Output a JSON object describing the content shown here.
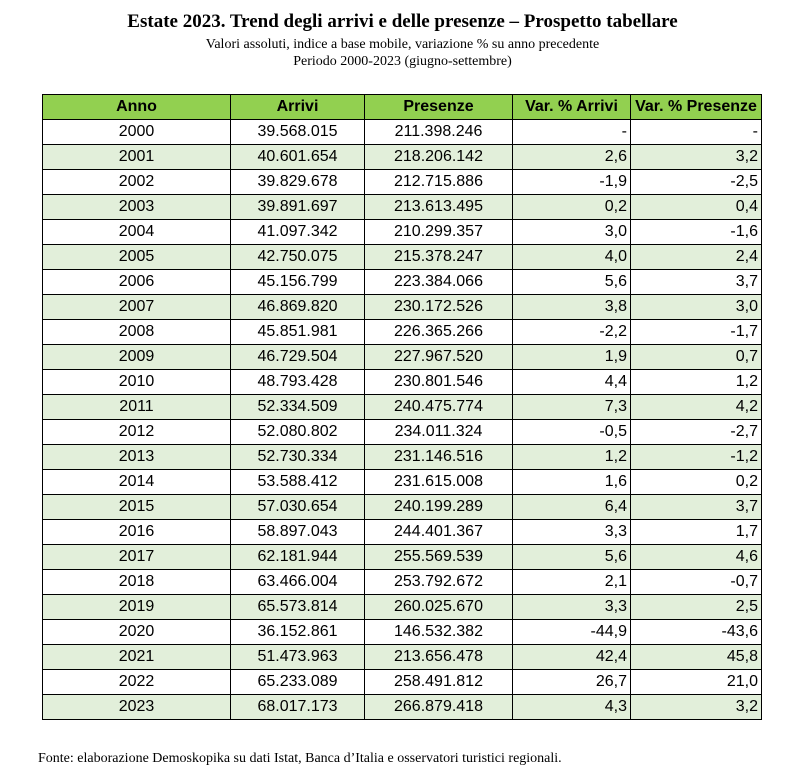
{
  "header": {
    "title": "Estate 2023. Trend degli arrivi e delle presenze – Prospetto tabellare",
    "subtitle_line1": "Valori assoluti, indice a base mobile, variazione % su anno precedente",
    "subtitle_line2": "Periodo 2000-2023 (giugno-settembre)"
  },
  "table": {
    "columns": [
      "Anno",
      "Arrivi",
      "Presenze",
      "Var. % Arrivi",
      "Var. % Presenze"
    ],
    "rows": [
      [
        "2000",
        "39.568.015",
        "211.398.246",
        "-",
        "-"
      ],
      [
        "2001",
        "40.601.654",
        "218.206.142",
        "2,6",
        "3,2"
      ],
      [
        "2002",
        "39.829.678",
        "212.715.886",
        "-1,9",
        "-2,5"
      ],
      [
        "2003",
        "39.891.697",
        "213.613.495",
        "0,2",
        "0,4"
      ],
      [
        "2004",
        "41.097.342",
        "210.299.357",
        "3,0",
        "-1,6"
      ],
      [
        "2005",
        "42.750.075",
        "215.378.247",
        "4,0",
        "2,4"
      ],
      [
        "2006",
        "45.156.799",
        "223.384.066",
        "5,6",
        "3,7"
      ],
      [
        "2007",
        "46.869.820",
        "230.172.526",
        "3,8",
        "3,0"
      ],
      [
        "2008",
        "45.851.981",
        "226.365.266",
        "-2,2",
        "-1,7"
      ],
      [
        "2009",
        "46.729.504",
        "227.967.520",
        "1,9",
        "0,7"
      ],
      [
        "2010",
        "48.793.428",
        "230.801.546",
        "4,4",
        "1,2"
      ],
      [
        "2011",
        "52.334.509",
        "240.475.774",
        "7,3",
        "4,2"
      ],
      [
        "2012",
        "52.080.802",
        "234.011.324",
        "-0,5",
        "-2,7"
      ],
      [
        "2013",
        "52.730.334",
        "231.146.516",
        "1,2",
        "-1,2"
      ],
      [
        "2014",
        "53.588.412",
        "231.615.008",
        "1,6",
        "0,2"
      ],
      [
        "2015",
        "57.030.654",
        "240.199.289",
        "6,4",
        "3,7"
      ],
      [
        "2016",
        "58.897.043",
        "244.401.367",
        "3,3",
        "1,7"
      ],
      [
        "2017",
        "62.181.944",
        "255.569.539",
        "5,6",
        "4,6"
      ],
      [
        "2018",
        "63.466.004",
        "253.792.672",
        "2,1",
        "-0,7"
      ],
      [
        "2019",
        "65.573.814",
        "260.025.670",
        "3,3",
        "2,5"
      ],
      [
        "2020",
        "36.152.861",
        "146.532.382",
        "-44,9",
        "-43,6"
      ],
      [
        "2021",
        "51.473.963",
        "213.656.478",
        "42,4",
        "45,8"
      ],
      [
        "2022",
        "65.233.089",
        "258.491.812",
        "26,7",
        "21,0"
      ],
      [
        "2023",
        "68.017.173",
        "266.879.418",
        "4,3",
        "3,2"
      ]
    ]
  },
  "footer": {
    "source": "Fonte: elaborazione Demoskopika su dati Istat, Banca d’Italia e osservatori turistici regionali."
  },
  "colors": {
    "header_bg": "#92d050",
    "stripe_bg": "#e2efda"
  }
}
